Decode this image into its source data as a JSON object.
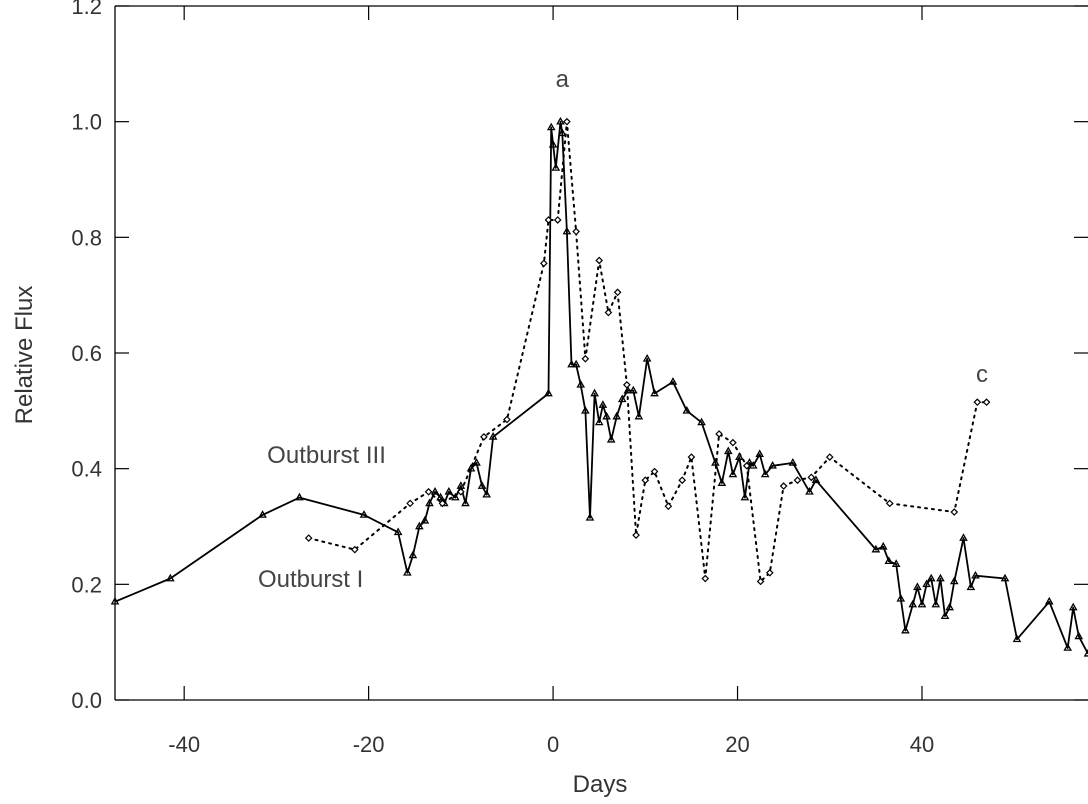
{
  "chart_data": {
    "type": "line",
    "title": "",
    "xlabel": "Days",
    "ylabel": "Relative Flux",
    "xlim": [
      -47.5,
      58
    ],
    "ylim": [
      0.0,
      1.2
    ],
    "xticks": [
      -40,
      -20,
      0,
      20,
      40
    ],
    "yticks": [
      0.0,
      0.2,
      0.4,
      0.6,
      0.8,
      1.0,
      1.2
    ],
    "xtick_labels": [
      "-40",
      "-20",
      "0",
      "20",
      "40"
    ],
    "ytick_labels": [
      "0.0",
      "0.2",
      "0.4",
      "0.6",
      "0.8",
      "1.0",
      "1.2"
    ],
    "grid": false,
    "legend": "none",
    "series": [
      {
        "style": "solid",
        "marker": "triangle",
        "color": "#000000",
        "x": [
          -47.5,
          -41.5,
          -31.5,
          -27.5,
          -20.5,
          -16.8,
          -15.8,
          -15.2,
          -14.5,
          -13.9,
          -13.4,
          -12.8,
          -12.2,
          -11.8,
          -11.3,
          -10.6,
          -10.0,
          -9.5,
          -8.9,
          -8.3,
          -7.7,
          -7.2,
          -6.5,
          -0.5,
          -0.2,
          0.0,
          0.3,
          0.8,
          1.0,
          1.5,
          2.0,
          2.5,
          3.0,
          3.5,
          4.0,
          4.5,
          5.0,
          5.4,
          5.8,
          6.3,
          6.9,
          7.5,
          8.1,
          8.7,
          9.3,
          10.2,
          11.0,
          13.0,
          14.5,
          16.1,
          17.6,
          18.3,
          19.0,
          19.5,
          20.2,
          20.8,
          21.3,
          21.7,
          22.4,
          23.0,
          23.8,
          26.0,
          27.8,
          28.5,
          35.0,
          35.8,
          36.4,
          37.2,
          37.7,
          38.2,
          39.0,
          39.5,
          40.0,
          40.5,
          41.0,
          41.5,
          42.0,
          42.5,
          43.0,
          43.5,
          44.5,
          45.3,
          45.8,
          49.0,
          50.3,
          53.8,
          55.8,
          56.4,
          57.0,
          58.0
        ],
        "y": [
          0.17,
          0.21,
          0.32,
          0.35,
          0.32,
          0.29,
          0.22,
          0.25,
          0.3,
          0.31,
          0.34,
          0.36,
          0.35,
          0.34,
          0.36,
          0.35,
          0.37,
          0.34,
          0.4,
          0.41,
          0.37,
          0.355,
          0.455,
          0.53,
          0.99,
          0.96,
          0.92,
          1.0,
          0.98,
          0.81,
          0.58,
          0.58,
          0.545,
          0.5,
          0.315,
          0.53,
          0.48,
          0.51,
          0.49,
          0.45,
          0.49,
          0.52,
          0.535,
          0.535,
          0.49,
          0.59,
          0.53,
          0.55,
          0.5,
          0.48,
          0.41,
          0.375,
          0.43,
          0.39,
          0.42,
          0.35,
          0.41,
          0.405,
          0.425,
          0.39,
          0.405,
          0.41,
          0.36,
          0.38,
          0.26,
          0.265,
          0.24,
          0.235,
          0.175,
          0.12,
          0.165,
          0.195,
          0.165,
          0.2,
          0.21,
          0.165,
          0.21,
          0.145,
          0.16,
          0.205,
          0.28,
          0.195,
          0.215,
          0.21,
          0.105,
          0.17,
          0.09,
          0.16,
          0.11,
          0.08
        ]
      },
      {
        "style": "dotted",
        "marker": "diamond",
        "color": "#000000",
        "x": [
          -26.5,
          -21.5,
          -15.5,
          -13.5,
          -12.0,
          -10.0,
          -7.5,
          -5.0,
          -1.0,
          -0.5,
          0.5,
          1.5,
          2.5,
          3.5,
          5.0,
          6.0,
          7.0,
          8.0,
          9.0,
          10.0,
          11.0,
          12.5,
          14.0,
          15.0,
          16.5,
          18.0,
          19.5,
          21.0,
          22.5,
          23.5,
          25.0,
          26.5,
          28.0,
          30.0,
          36.5,
          43.5,
          46.0,
          47.0
        ],
        "y": [
          0.28,
          0.26,
          0.34,
          0.36,
          0.34,
          0.36,
          0.455,
          0.485,
          0.755,
          0.83,
          0.83,
          1.0,
          0.81,
          0.59,
          0.76,
          0.67,
          0.705,
          0.545,
          0.285,
          0.38,
          0.395,
          0.335,
          0.38,
          0.42,
          0.21,
          0.46,
          0.445,
          0.405,
          0.205,
          0.22,
          0.37,
          0.38,
          0.385,
          0.42,
          0.34,
          0.325,
          0.515,
          0.515
        ]
      }
    ],
    "annotations": [
      {
        "text": "a",
        "x": 1.0,
        "y": 1.06
      },
      {
        "text": "c",
        "x": 46.5,
        "y": 0.55
      },
      {
        "text": "Outburst III",
        "x": -31.0,
        "y": 0.41
      },
      {
        "text": "Outburst I",
        "x": -32.0,
        "y": 0.195
      }
    ]
  }
}
